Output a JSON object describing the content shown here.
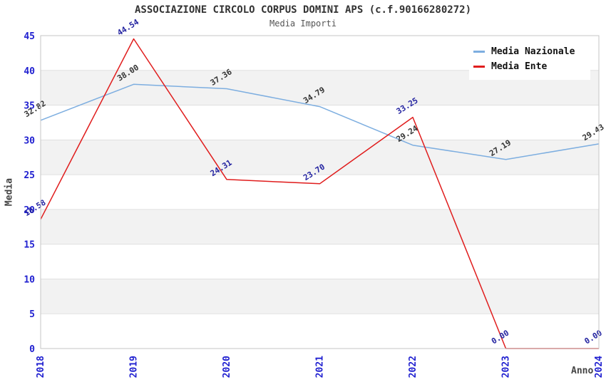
{
  "chart_data": {
    "type": "line",
    "title": "ASSOCIAZIONE CIRCOLO CORPUS DOMINI APS (c.f.90166280272)",
    "subtitle": "Media Importi",
    "xlabel": "Anno",
    "ylabel": "Media",
    "x": [
      "2018",
      "2019",
      "2020",
      "2021",
      "2022",
      "2023",
      "2024"
    ],
    "series": [
      {
        "name": "Media Nazionale",
        "color": "#7daee0",
        "label_color": "#333333",
        "values": [
          32.82,
          38.0,
          37.36,
          34.79,
          29.24,
          27.19,
          29.43
        ]
      },
      {
        "name": "Media Ente",
        "color": "#e01d1d",
        "label_color": "#2222a0",
        "values": [
          18.58,
          44.54,
          24.31,
          23.7,
          33.25,
          0.0,
          0.0
        ]
      }
    ],
    "ylim": [
      0,
      45
    ],
    "ytick_step": 5,
    "grid": true,
    "legend_position": "top-right",
    "tick_label_color": "#2020d0",
    "band_colors": [
      "#ffffff",
      "#f2f2f2"
    ],
    "gridline_color": "#e0e0e0",
    "border_color": "#c6c6c6"
  }
}
